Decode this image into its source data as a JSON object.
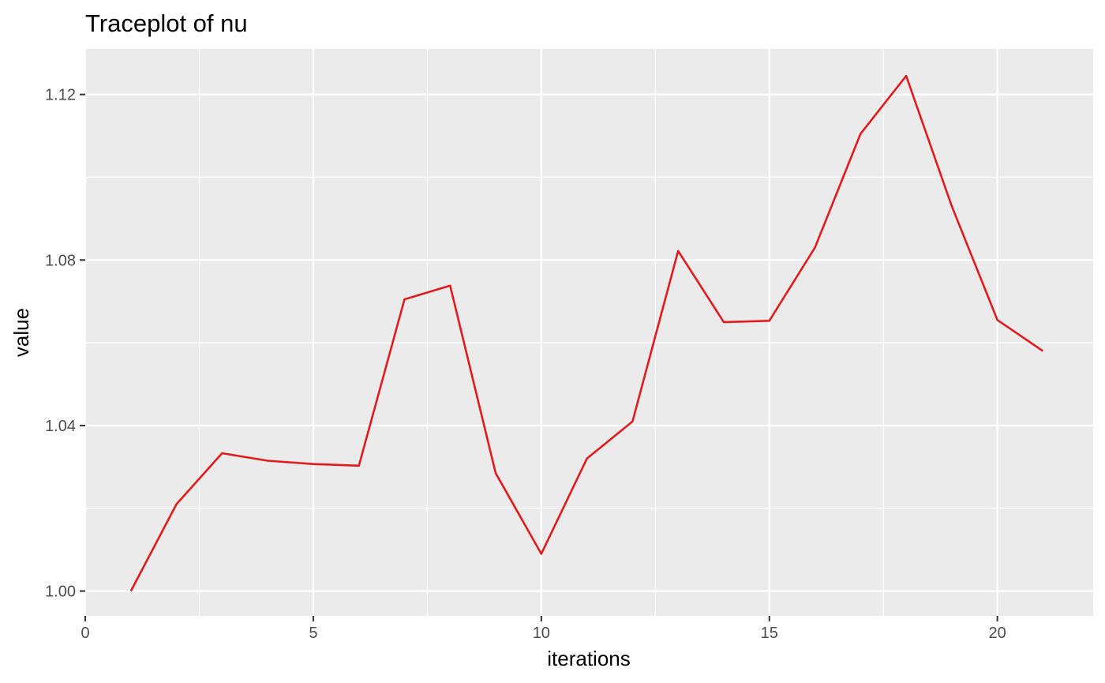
{
  "chart_data": {
    "type": "line",
    "title": "Traceplot of nu",
    "xlabel": "iterations",
    "ylabel": "value",
    "xlim": [
      0,
      22.1
    ],
    "ylim": [
      0.994,
      1.131
    ],
    "x_ticks": [
      0,
      5,
      10,
      15,
      20
    ],
    "y_ticks": [
      1.0,
      1.04,
      1.08,
      1.12
    ],
    "x_tick_labels": [
      "0",
      "5",
      "10",
      "15",
      "20"
    ],
    "y_tick_labels": [
      "1.00",
      "1.04",
      "1.08",
      "1.12"
    ],
    "grid": true,
    "panel_background": "#ebebeb",
    "grid_color": "#ffffff",
    "series": [
      {
        "color": "#e31a1c",
        "x": [
          1,
          2,
          3,
          4,
          5,
          6,
          7,
          8,
          9,
          10,
          11,
          12,
          13,
          14,
          15,
          16,
          17,
          18,
          19,
          20,
          21
        ],
        "y": [
          1.0,
          1.021,
          1.0333,
          1.0315,
          1.0307,
          1.0303,
          1.0705,
          1.0738,
          1.0285,
          1.009,
          1.032,
          1.041,
          1.0822,
          1.065,
          1.0653,
          1.083,
          1.1105,
          1.1245,
          1.093,
          1.0655,
          1.058
        ]
      }
    ]
  }
}
